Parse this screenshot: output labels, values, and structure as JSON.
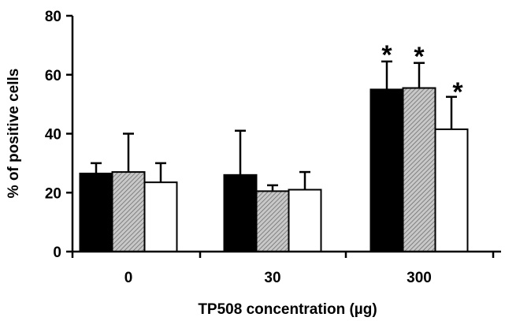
{
  "chart_data": {
    "type": "bar",
    "title": "",
    "xlabel": "TP508 concentration (µg)",
    "ylabel": "% of positive cells",
    "ylim": [
      0,
      80
    ],
    "yticks": [
      0,
      20,
      40,
      60,
      80
    ],
    "categories": [
      "0",
      "30",
      "300"
    ],
    "legend": "none",
    "grid": false,
    "series": [
      {
        "fill": "#000000",
        "values": [
          26.5,
          26,
          55
        ],
        "errors": [
          3.5,
          15,
          9.5
        ],
        "significant": [
          false,
          false,
          true
        ]
      },
      {
        "fill": "hatched-gray",
        "values": [
          27,
          20.5,
          55.5
        ],
        "errors": [
          13,
          2,
          8.5
        ],
        "significant": [
          false,
          false,
          true
        ]
      },
      {
        "fill": "#ffffff",
        "values": [
          23.5,
          21,
          41.5
        ],
        "errors": [
          6.5,
          6,
          11
        ],
        "significant": [
          false,
          false,
          true
        ]
      }
    ],
    "significance_marker": "*"
  }
}
